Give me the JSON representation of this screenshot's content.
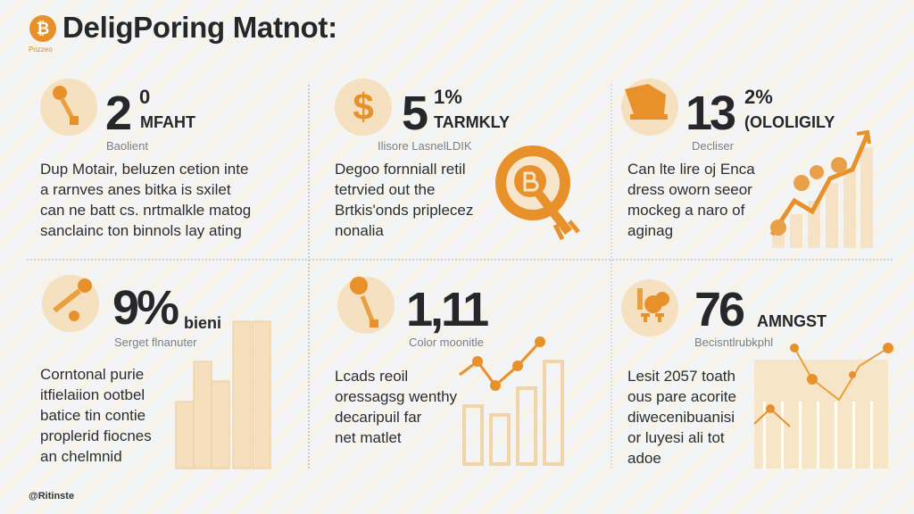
{
  "header": {
    "title": "DeligPoring Matnot:",
    "logo_glyph": "₿",
    "brand": "Pozzeo"
  },
  "colors": {
    "accent": "#e8912a",
    "pale": "#f5e0c0",
    "background": "#f3f4f6"
  },
  "panels": [
    {
      "icon": "key-icon",
      "big": "2",
      "sup": "0",
      "label": "MFAHT",
      "sub": "Baolient",
      "body": "Dup Motair, beluzen cetion inte\na rarnves anes bitka is sxilet\ncan ne batt cs. nrtmalkle matog\nsanclainc ton binnols lay ating"
    },
    {
      "icon": "dollar-icon",
      "big": "5",
      "sup": "1%",
      "label": "TARMKLY",
      "sub": "Ilisore LasnelLDIK",
      "body": "Degoo fornniall retil\ntetrvied out the\nBrtkis'onds priplecez\nnonalia"
    },
    {
      "icon": "piggy-bank-icon",
      "big": "13",
      "sup": "2%",
      "label": "(OLOLIGILY",
      "sub": "Decliser",
      "body": "Can lte lire oj Enca\ndress oworn seeor\nmockeg a naro of\naginag"
    },
    {
      "icon": "microphone-icon",
      "big": "9%",
      "sup": "",
      "label": "bieni",
      "sub": "Serget flnanuter",
      "body": "Corntonal purie\nitfielaiion ootbel\nbatice tin contie\nproplerid fiocnes\nan chelmnid"
    },
    {
      "icon": "coin-key-icon",
      "big": "1,11",
      "sup": "",
      "label": "",
      "sub": "Color moonitle",
      "body": "Lcads reoil\noressagsg wenthy\ndecaripuil far\nnet matlet"
    },
    {
      "icon": "coins-icon",
      "big": "76",
      "sup": "",
      "label": "AMNGST",
      "sub": "Becisntlrubkphl",
      "body": "Lesit 2057 toath\nous pare acorite\ndiwecenibuanisi\nor luyesi ali tot\nadoe"
    }
  ],
  "footer": {
    "text": "@Ritinste"
  }
}
